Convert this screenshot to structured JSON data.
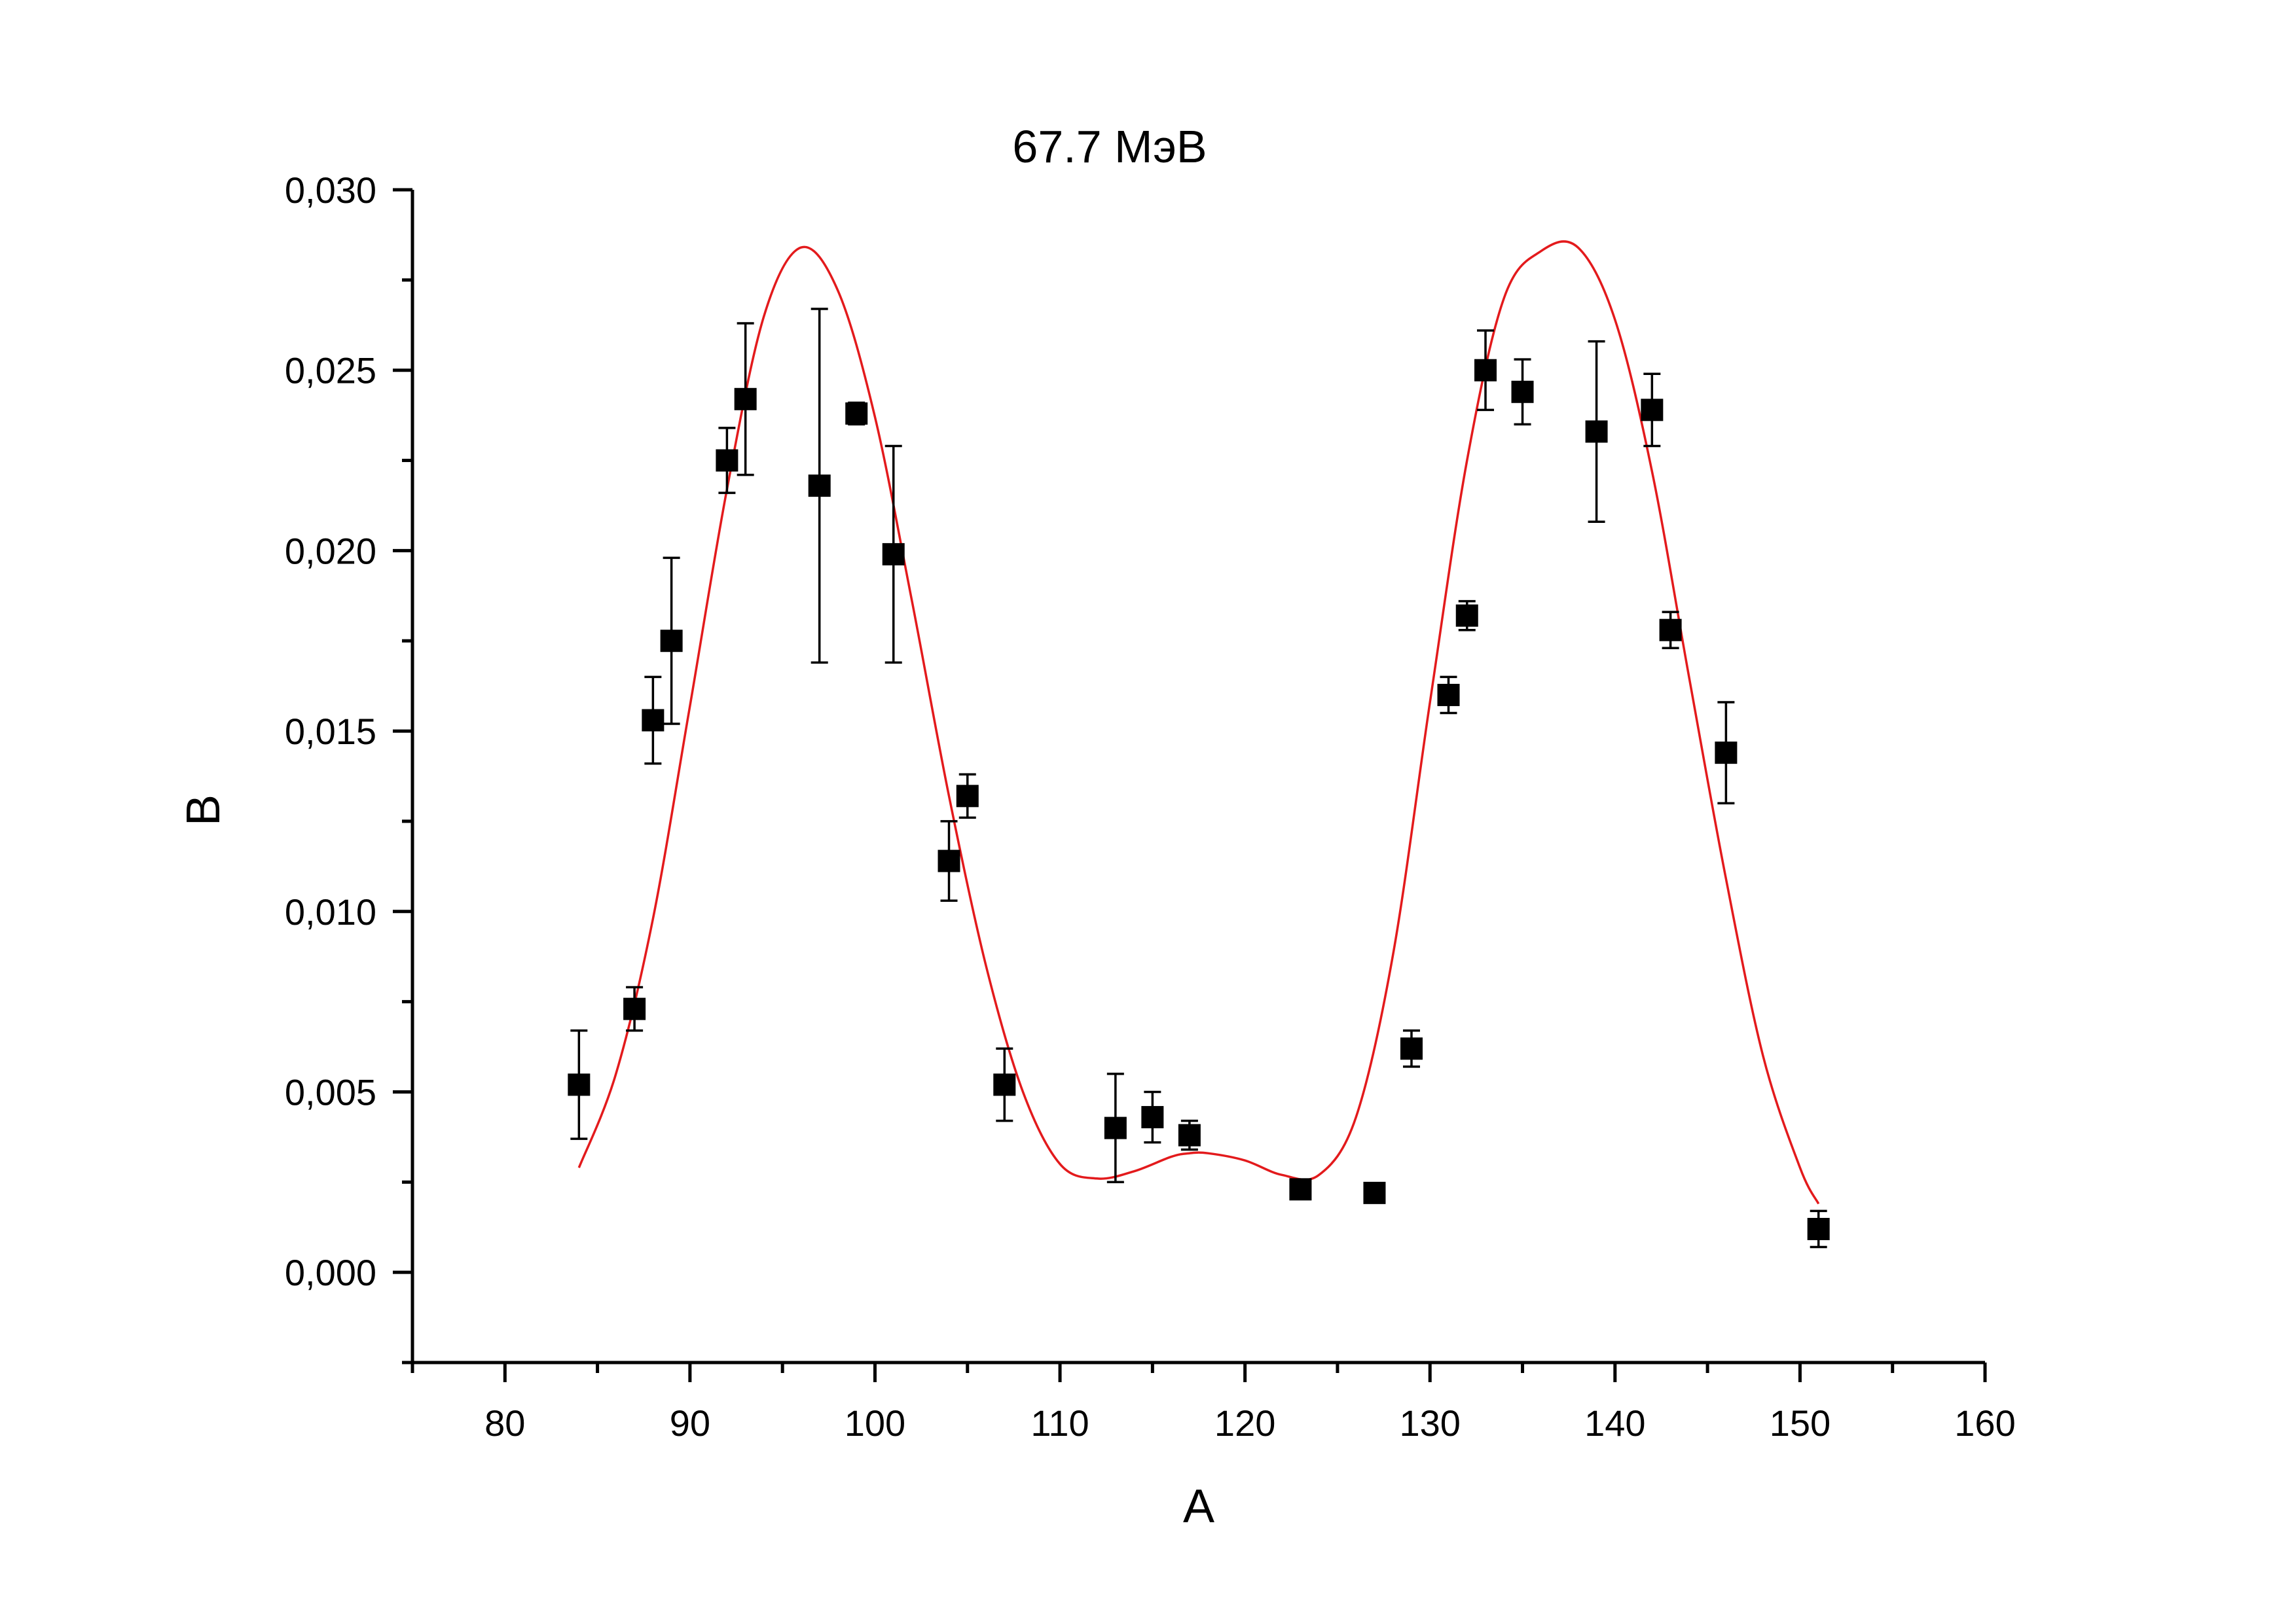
{
  "chart_data": {
    "type": "scatter",
    "title": "67.7 МэВ",
    "xlabel": "A",
    "ylabel": "B",
    "xlim": [
      75,
      160
    ],
    "ylim": [
      -0.0025,
      0.03
    ],
    "x_ticks": [
      80,
      90,
      100,
      110,
      120,
      130,
      140,
      150,
      160
    ],
    "x_tick_labels": [
      "80",
      "90",
      "100",
      "110",
      "120",
      "130",
      "140",
      "150",
      "160"
    ],
    "y_ticks": [
      0.0,
      0.005,
      0.01,
      0.015,
      0.02,
      0.025,
      0.03
    ],
    "y_tick_labels": [
      "0,000",
      "0,005",
      "0,010",
      "0,015",
      "0,020",
      "0,025",
      "0,030"
    ],
    "grid": false,
    "series": [
      {
        "kind": "points_with_error_bars",
        "marker": "square",
        "color": "#000000",
        "points": [
          {
            "x": 84,
            "y": 0.0052,
            "err": 0.0015
          },
          {
            "x": 87,
            "y": 0.0073,
            "err": 0.0006
          },
          {
            "x": 88,
            "y": 0.0153,
            "err": 0.0012
          },
          {
            "x": 89,
            "y": 0.0175,
            "err": 0.0023
          },
          {
            "x": 92,
            "y": 0.0225,
            "err": 0.0009
          },
          {
            "x": 93,
            "y": 0.0242,
            "err": 0.0021
          },
          {
            "x": 97,
            "y": 0.0218,
            "err": 0.0049
          },
          {
            "x": 99,
            "y": 0.0238,
            "err": 0.0003
          },
          {
            "x": 101,
            "y": 0.0199,
            "err": 0.003
          },
          {
            "x": 104,
            "y": 0.0114,
            "err": 0.0011
          },
          {
            "x": 105,
            "y": 0.0132,
            "err": 0.0006
          },
          {
            "x": 107,
            "y": 0.0052,
            "err": 0.001
          },
          {
            "x": 113,
            "y": 0.004,
            "err": 0.0015
          },
          {
            "x": 115,
            "y": 0.0043,
            "err": 0.0007
          },
          {
            "x": 117,
            "y": 0.0038,
            "err": 0.0004
          },
          {
            "x": 123,
            "y": 0.0023,
            "err": 0.0002
          },
          {
            "x": 127,
            "y": 0.0022,
            "err": 0.0002
          },
          {
            "x": 129,
            "y": 0.0062,
            "err": 0.0005
          },
          {
            "x": 131,
            "y": 0.016,
            "err": 0.0005
          },
          {
            "x": 132,
            "y": 0.0182,
            "err": 0.0004
          },
          {
            "x": 133,
            "y": 0.025,
            "err": 0.0011
          },
          {
            "x": 135,
            "y": 0.0244,
            "err": 0.0009
          },
          {
            "x": 139,
            "y": 0.0233,
            "err": 0.0025
          },
          {
            "x": 142,
            "y": 0.0239,
            "err": 0.001
          },
          {
            "x": 143,
            "y": 0.0178,
            "err": 0.0005
          },
          {
            "x": 146,
            "y": 0.0144,
            "err": 0.0014
          },
          {
            "x": 151,
            "y": 0.0012,
            "err": 0.0005
          }
        ]
      },
      {
        "kind": "fit_curve",
        "color": "#e31a1c",
        "x": [
          84,
          86,
          88,
          90,
          92,
          94,
          96,
          98,
          100,
          102,
          104,
          106,
          108,
          110,
          112,
          114,
          116,
          117,
          118,
          120,
          122,
          124,
          126,
          128,
          130,
          132,
          134,
          136,
          138,
          140,
          142,
          144,
          146,
          148,
          150,
          151
        ],
        "y": [
          0.0029,
          0.0055,
          0.0098,
          0.0157,
          0.0217,
          0.0265,
          0.0284,
          0.0272,
          0.0237,
          0.0186,
          0.0132,
          0.0085,
          0.005,
          0.003,
          0.0026,
          0.0028,
          0.0032,
          0.0033,
          0.0033,
          0.0031,
          0.0027,
          0.0027,
          0.0043,
          0.0088,
          0.0158,
          0.0225,
          0.027,
          0.0283,
          0.0284,
          0.0264,
          0.0222,
          0.0165,
          0.0109,
          0.006,
          0.0029,
          0.0019
        ]
      }
    ]
  }
}
